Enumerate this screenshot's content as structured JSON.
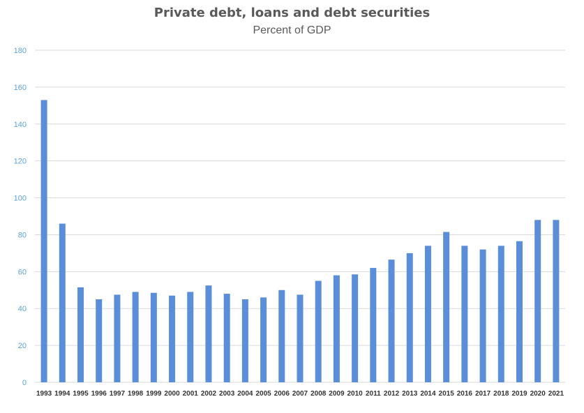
{
  "chart_data": {
    "type": "bar",
    "title": "Private debt, loans and debt securities",
    "subtitle": "Percent of GDP",
    "xlabel": "",
    "ylabel": "",
    "ylim": [
      0,
      180
    ],
    "yticks": [
      0,
      20,
      40,
      60,
      80,
      100,
      120,
      140,
      160,
      180
    ],
    "grid": true,
    "bar_color": "#5b8ed9",
    "grid_color": "#d9d9d9",
    "ytick_color": "#5ba3d9",
    "categories": [
      "1993",
      "1994",
      "1995",
      "1996",
      "1997",
      "1998",
      "1999",
      "2000",
      "2001",
      "2002",
      "2003",
      "2004",
      "2005",
      "2006",
      "2007",
      "2008",
      "2009",
      "2010",
      "2011",
      "2012",
      "2013",
      "2014",
      "2015",
      "2016",
      "2017",
      "2018",
      "2019",
      "2020",
      "2021"
    ],
    "values": [
      153,
      86,
      51.5,
      45,
      47.5,
      49,
      48.5,
      47,
      49,
      52.5,
      48,
      45,
      46,
      50,
      47.5,
      55,
      58,
      58.5,
      62,
      66.5,
      70,
      74,
      81.5,
      74,
      72,
      74,
      76.5,
      88,
      88
    ]
  }
}
